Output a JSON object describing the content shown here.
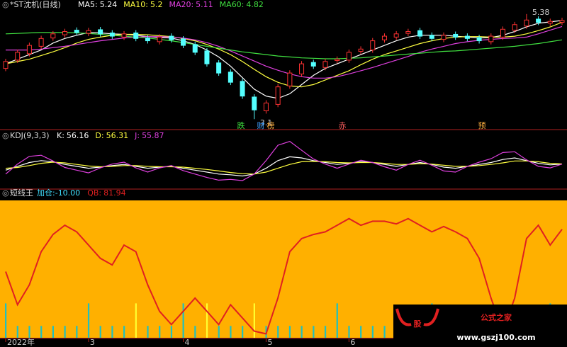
{
  "chart_data": [
    {
      "type": "candlestick",
      "title": "*ST沈机(日线)",
      "ylim": [
        2.95,
        5.5
      ],
      "up_color": "#ff3232",
      "down_color": "#54ffff",
      "open": [
        4.2,
        4.38,
        4.52,
        4.68,
        4.86,
        4.93,
        5.03,
        4.96,
        5.04,
        4.97,
        4.88,
        4.97,
        4.86,
        4.78,
        4.9,
        4.84,
        4.72,
        4.58,
        4.32,
        4.12,
        3.92,
        3.58,
        3.28,
        3.42,
        3.82,
        4.08,
        4.33,
        4.22,
        4.37,
        4.38,
        4.57,
        4.6,
        4.82,
        4.88,
        4.96,
        5.02,
        4.92,
        4.83,
        4.94,
        4.9,
        4.87,
        4.78,
        4.88,
        5.03,
        5.12,
        5.27,
        5.18,
        5.2
      ],
      "high": [
        4.41,
        4.61,
        4.76,
        4.91,
        5.01,
        5.06,
        5.09,
        5.08,
        5.1,
        5.03,
        5.01,
        5.03,
        4.92,
        4.94,
        4.96,
        4.9,
        4.78,
        4.64,
        4.38,
        4.18,
        3.98,
        3.64,
        3.51,
        3.86,
        4.16,
        4.36,
        4.39,
        4.41,
        4.46,
        4.61,
        4.68,
        4.86,
        4.96,
        5.01,
        5.06,
        5.08,
        4.98,
        4.98,
        5.0,
        4.96,
        4.93,
        4.96,
        5.11,
        5.21,
        5.38,
        5.33,
        5.28,
        5.3
      ],
      "low": [
        4.14,
        4.32,
        4.46,
        4.62,
        4.8,
        4.87,
        4.92,
        4.9,
        4.89,
        4.84,
        4.82,
        4.79,
        4.74,
        4.72,
        4.76,
        4.64,
        4.49,
        4.24,
        4.04,
        3.84,
        3.54,
        3.1,
        3.22,
        3.36,
        3.76,
        4.02,
        4.19,
        4.16,
        4.31,
        4.32,
        4.51,
        4.54,
        4.76,
        4.82,
        4.9,
        4.84,
        4.79,
        4.77,
        4.82,
        4.79,
        4.74,
        4.72,
        4.82,
        4.97,
        5.06,
        5.14,
        5.12,
        5.14
      ],
      "close": [
        4.35,
        4.55,
        4.7,
        4.85,
        4.95,
        5.0,
        4.98,
        5.02,
        4.95,
        4.9,
        4.95,
        4.85,
        4.8,
        4.88,
        4.82,
        4.7,
        4.55,
        4.3,
        4.1,
        3.9,
        3.6,
        3.3,
        3.45,
        3.8,
        4.1,
        4.3,
        4.25,
        4.35,
        4.4,
        4.55,
        4.62,
        4.8,
        4.9,
        4.95,
        5.0,
        4.9,
        4.85,
        4.92,
        4.88,
        4.85,
        4.8,
        4.9,
        5.05,
        5.15,
        5.25,
        5.2,
        5.22,
        5.24
      ],
      "series": [
        {
          "name": "MA5:",
          "color": "#ffffff",
          "values": [
            4.3,
            4.4,
            4.5,
            4.6,
            4.75,
            4.85,
            4.92,
            4.98,
            4.97,
            4.95,
            4.94,
            4.92,
            4.89,
            4.87,
            4.86,
            4.8,
            4.72,
            4.6,
            4.45,
            4.25,
            4.0,
            3.75,
            3.6,
            3.55,
            3.65,
            3.85,
            4.05,
            4.2,
            4.3,
            4.4,
            4.5,
            4.6,
            4.7,
            4.8,
            4.88,
            4.92,
            4.92,
            4.92,
            4.9,
            4.88,
            4.86,
            4.87,
            4.92,
            5.0,
            5.1,
            5.18,
            5.21,
            5.24
          ]
        },
        {
          "name": "MA10:",
          "color": "#ffff40",
          "values": [
            4.3,
            4.35,
            4.4,
            4.48,
            4.56,
            4.65,
            4.75,
            4.83,
            4.88,
            4.92,
            4.94,
            4.94,
            4.93,
            4.91,
            4.89,
            4.85,
            4.8,
            4.72,
            4.62,
            4.5,
            4.35,
            4.18,
            4.02,
            3.9,
            3.82,
            3.8,
            3.85,
            3.95,
            4.05,
            4.15,
            4.28,
            4.4,
            4.5,
            4.58,
            4.66,
            4.74,
            4.8,
            4.85,
            4.88,
            4.89,
            4.89,
            4.88,
            4.88,
            4.9,
            4.95,
            5.02,
            5.1,
            5.2
          ]
        },
        {
          "name": "MA20:",
          "color": "#e040e0",
          "values": [
            4.6,
            4.6,
            4.6,
            4.62,
            4.65,
            4.68,
            4.72,
            4.76,
            4.8,
            4.83,
            4.86,
            4.88,
            4.89,
            4.89,
            4.88,
            4.86,
            4.82,
            4.76,
            4.68,
            4.58,
            4.47,
            4.36,
            4.25,
            4.16,
            4.08,
            4.02,
            3.99,
            3.99,
            4.02,
            4.08,
            4.15,
            4.22,
            4.3,
            4.38,
            4.46,
            4.55,
            4.62,
            4.68,
            4.74,
            4.78,
            4.81,
            4.83,
            4.85,
            4.86,
            4.88,
            4.95,
            5.03,
            5.11
          ]
        },
        {
          "name": "MA60:",
          "color": "#40e040",
          "values": [
            4.95,
            4.96,
            4.97,
            4.98,
            4.98,
            4.98,
            4.97,
            4.96,
            4.94,
            4.92,
            4.9,
            4.88,
            4.86,
            4.83,
            4.8,
            4.76,
            4.72,
            4.68,
            4.64,
            4.6,
            4.56,
            4.53,
            4.5,
            4.47,
            4.45,
            4.43,
            4.42,
            4.41,
            4.41,
            4.42,
            4.43,
            4.45,
            4.47,
            4.49,
            4.51,
            4.53,
            4.55,
            4.57,
            4.58,
            4.6,
            4.62,
            4.64,
            4.66,
            4.68,
            4.71,
            4.74,
            4.78,
            4.82
          ]
        }
      ],
      "markers": [
        "跌",
        "财",
        "榜",
        "赤",
        "预"
      ]
    },
    {
      "type": "line",
      "title": "KDJ(9,3,3)",
      "ylim": [
        0,
        120
      ],
      "series": [
        {
          "name": "K:",
          "color": "#ffffff",
          "values": [
            40,
            50,
            60,
            65,
            62,
            55,
            50,
            45,
            48,
            52,
            55,
            50,
            45,
            48,
            50,
            45,
            40,
            35,
            30,
            28,
            25,
            30,
            45,
            65,
            75,
            72,
            65,
            60,
            55,
            58,
            62,
            60,
            55,
            50,
            55,
            60,
            55,
            48,
            45,
            50,
            55,
            60,
            68,
            72,
            65,
            58,
            54,
            56.16
          ]
        },
        {
          "name": "D:",
          "color": "#ffff40",
          "values": [
            45,
            47,
            52,
            58,
            61,
            59,
            55,
            51,
            49,
            50,
            52,
            52,
            50,
            49,
            49,
            48,
            45,
            42,
            38,
            34,
            31,
            30,
            35,
            45,
            55,
            62,
            63,
            62,
            60,
            59,
            60,
            60,
            58,
            55,
            55,
            57,
            56,
            53,
            50,
            50,
            52,
            55,
            59,
            64,
            64,
            62,
            58,
            56.31
          ]
        },
        {
          "name": "J:",
          "color": "#e040e0",
          "values": [
            30,
            56,
            76,
            79,
            64,
            47,
            40,
            33,
            46,
            56,
            61,
            46,
            35,
            46,
            52,
            39,
            30,
            21,
            14,
            16,
            13,
            30,
            65,
            105,
            115,
            92,
            69,
            56,
            45,
            56,
            66,
            60,
            49,
            40,
            55,
            66,
            53,
            38,
            35,
            50,
            61,
            70,
            86,
            88,
            67,
            50,
            46,
            55.87
          ]
        }
      ]
    },
    {
      "type": "line",
      "title": "短线王",
      "ylim": [
        0,
        100
      ],
      "background": "#ffb000",
      "categories": [
        "2022年",
        null,
        null,
        null,
        null,
        null,
        null,
        "3",
        null,
        null,
        null,
        null,
        null,
        null,
        null,
        "4",
        null,
        null,
        null,
        null,
        null,
        null,
        "5",
        null,
        null,
        null,
        null,
        null,
        null,
        "6",
        null,
        null,
        null,
        null,
        null,
        null,
        null,
        null,
        null,
        null,
        null,
        null,
        null,
        null,
        null,
        null,
        null,
        null
      ],
      "indicator": {
        "name": "加仓:",
        "value": -10,
        "value_label": "-10.00",
        "color": "#40e0ff"
      },
      "series": [
        {
          "name": "QB:",
          "color": "#e02020",
          "values": [
            50,
            25,
            40,
            65,
            78,
            85,
            80,
            70,
            60,
            55,
            70,
            65,
            40,
            20,
            10,
            20,
            30,
            20,
            10,
            25,
            15,
            5,
            3,
            30,
            65,
            75,
            78,
            80,
            85,
            90,
            85,
            88,
            88,
            86,
            90,
            85,
            80,
            84,
            80,
            75,
            60,
            30,
            5,
            30,
            75,
            85,
            70,
            81.94
          ]
        }
      ],
      "bars": {
        "values": [
          26,
          9,
          9,
          9,
          9,
          9,
          9,
          26,
          9,
          9,
          9,
          26,
          9,
          9,
          9,
          26,
          9,
          26,
          9,
          9,
          9,
          26,
          9,
          9,
          9,
          9,
          9,
          9,
          26,
          9,
          9,
          9,
          9,
          9,
          9,
          9,
          26,
          9,
          9,
          9,
          9,
          9,
          9,
          9,
          9,
          9,
          26,
          9
        ],
        "colors": [
          "#20c0c0",
          "#20c0c0",
          "#20c0c0",
          "#20c0c0",
          "#20c0c0",
          "#20c0c0",
          "#20c0c0",
          "#20c0c0",
          "#20c0c0",
          "#20c0c0",
          "#20c0c0",
          "#ffff30",
          "#20c0c0",
          "#20c0c0",
          "#20c0c0",
          "#20c0c0",
          "#20c0c0",
          "#ffff30",
          "#20c0c0",
          "#20c0c0",
          "#20c0c0",
          "#ffff30",
          "#20c0c0",
          "#20c0c0",
          "#20c0c0",
          "#20c0c0",
          "#20c0c0",
          "#20c0c0",
          "#20c0c0",
          "#20c0c0",
          "#20c0c0",
          "#20c0c0",
          "#20c0c0",
          "#20c0c0",
          "#20c0c0",
          "#20c0c0",
          "#20c0c0",
          "#20c0c0",
          "#20c0c0",
          "#20c0c0",
          "#20c0c0",
          "#20c0c0",
          "#20c0c0",
          "#20c0c0",
          "#20c0c0",
          "#20c0c0",
          "#20c0c0",
          "#20c0c0"
        ]
      }
    }
  ],
  "watermark": {
    "logo": "股",
    "name": "公式之家",
    "url": "www.gszj100.com"
  }
}
